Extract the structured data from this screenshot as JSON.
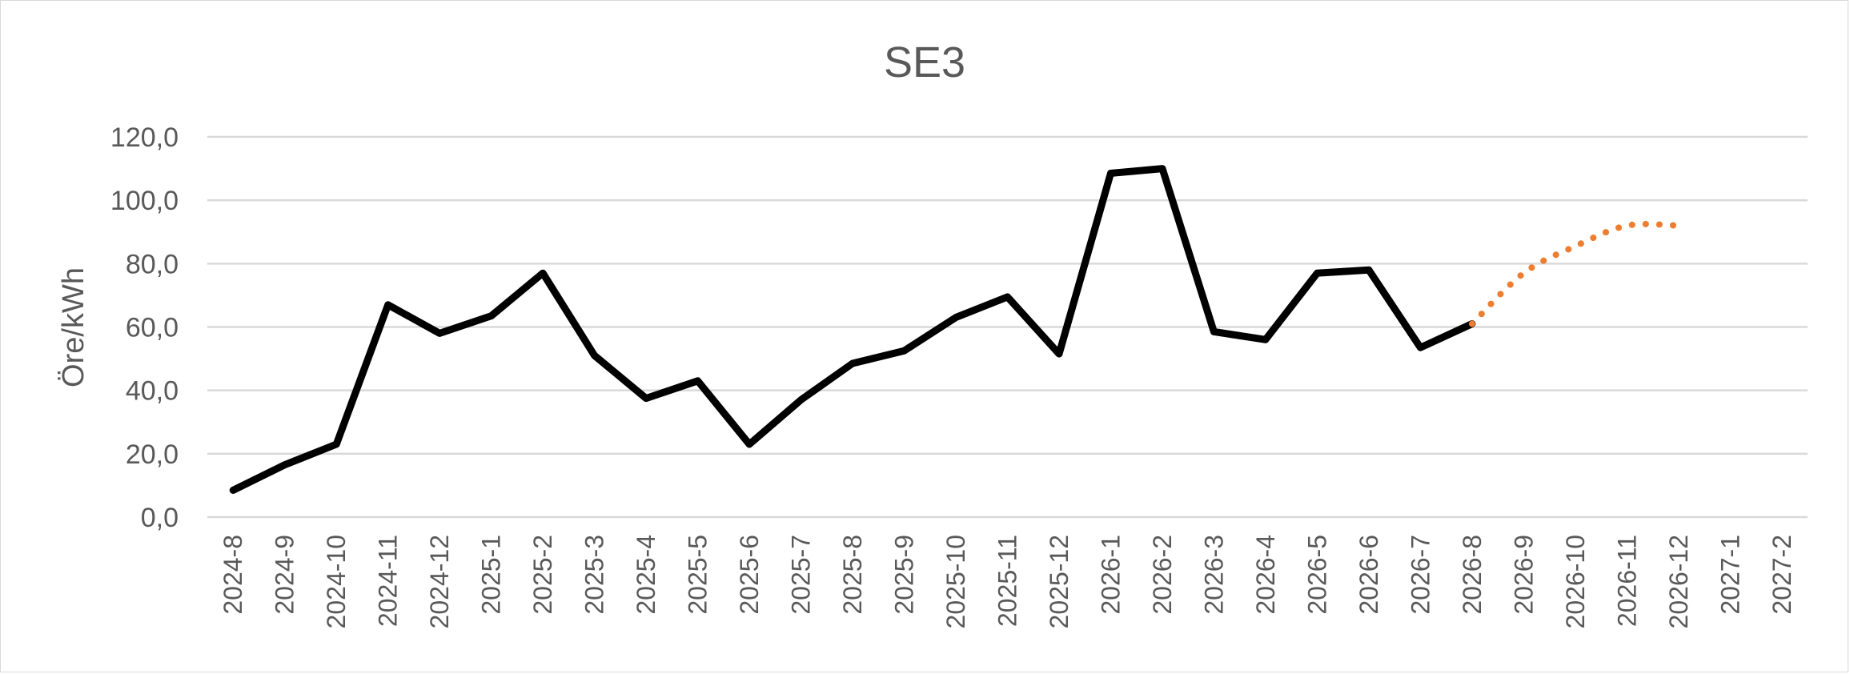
{
  "chart_data": {
    "type": "line",
    "title": "SE3",
    "xlabel": "",
    "ylabel": "Öre/kWh",
    "ylim": [
      0,
      120
    ],
    "yticks": [
      "0,0",
      "20,0",
      "40,0",
      "60,0",
      "80,0",
      "100,0",
      "120,0"
    ],
    "grid": true,
    "legend": "none",
    "categories": [
      "2024-8",
      "2024-9",
      "2024-10",
      "2024-11",
      "2024-12",
      "2025-1",
      "2025-2",
      "2025-3",
      "2025-4",
      "2025-5",
      "2025-6",
      "2025-7",
      "2025-8",
      "2025-9",
      "2025-10",
      "2025-11",
      "2025-12",
      "2026-1",
      "2026-2",
      "2026-3",
      "2026-4",
      "2026-5",
      "2026-6",
      "2026-7",
      "2026-8",
      "2026-9",
      "2026-10",
      "2026-11",
      "2026-12",
      "2027-1",
      "2027-2"
    ],
    "series": [
      {
        "style": "solid",
        "color": "#000000",
        "values": [
          8.5,
          16.5,
          23.0,
          67.0,
          58.0,
          63.5,
          77.0,
          51.0,
          37.5,
          43.0,
          23.0,
          37.0,
          48.5,
          52.5,
          63.0,
          69.5,
          51.5,
          108.5,
          110.0,
          58.5,
          56.0,
          77.0,
          78.0,
          53.5,
          61.0,
          null,
          null,
          null,
          null,
          null,
          null
        ]
      },
      {
        "style": "dotted",
        "color": "#ed7d31",
        "values": [
          null,
          null,
          null,
          null,
          null,
          null,
          null,
          null,
          null,
          null,
          null,
          null,
          null,
          null,
          null,
          null,
          null,
          null,
          null,
          null,
          null,
          null,
          null,
          null,
          61.0,
          77.0,
          85.5,
          92.0,
          92.0,
          null,
          null
        ]
      }
    ]
  }
}
